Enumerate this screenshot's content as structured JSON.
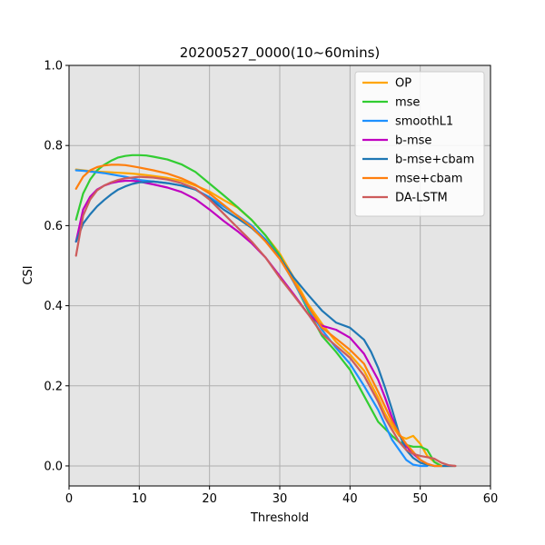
{
  "chart_data": {
    "type": "line",
    "title": "20200527_0000(10~60mins)",
    "xlabel": "Threshold",
    "ylabel": "CSI",
    "xlim": [
      0,
      60
    ],
    "ylim": [
      -0.05,
      1.0
    ],
    "xticks": [
      "0",
      "10",
      "20",
      "30",
      "40",
      "50",
      "60"
    ],
    "yticks": [
      "0.0",
      "0.2",
      "0.4",
      "0.6",
      "0.8",
      "1.0"
    ],
    "grid": true,
    "legend_position": "upper right",
    "background_color": "#e5e5e5",
    "series": [
      {
        "name": "OP",
        "color": "#ffa500",
        "x": [
          1,
          2,
          3,
          4,
          5,
          6,
          7,
          8,
          9,
          10,
          12,
          14,
          16,
          18,
          20,
          22,
          24,
          26,
          28,
          30,
          32,
          34,
          36,
          38,
          40,
          42,
          44,
          45,
          46,
          47,
          48,
          49,
          50,
          51,
          52,
          53,
          54,
          55
        ],
        "y": [
          0.74,
          0.738,
          0.736,
          0.735,
          0.734,
          0.733,
          0.732,
          0.731,
          0.73,
          0.728,
          0.724,
          0.719,
          0.712,
          0.7,
          0.685,
          0.664,
          0.645,
          0.614,
          0.575,
          0.53,
          0.47,
          0.405,
          0.355,
          0.31,
          0.278,
          0.238,
          0.17,
          0.13,
          0.1,
          0.075,
          0.068,
          0.075,
          0.055,
          0.025,
          0.01,
          0.0,
          0.0,
          0.0
        ]
      },
      {
        "name": "mse",
        "color": "#32cd32",
        "x": [
          1,
          2,
          3,
          4,
          5,
          6,
          7,
          8,
          9,
          10,
          11,
          12,
          14,
          16,
          18,
          20,
          22,
          24,
          26,
          28,
          30,
          32,
          34,
          36,
          38,
          40,
          42,
          44,
          46,
          47,
          48,
          49,
          50,
          51,
          52,
          53
        ],
        "y": [
          0.615,
          0.68,
          0.715,
          0.738,
          0.752,
          0.762,
          0.77,
          0.774,
          0.776,
          0.776,
          0.775,
          0.772,
          0.765,
          0.753,
          0.734,
          0.705,
          0.676,
          0.646,
          0.614,
          0.575,
          0.525,
          0.46,
          0.39,
          0.325,
          0.285,
          0.24,
          0.175,
          0.11,
          0.075,
          0.06,
          0.052,
          0.048,
          0.048,
          0.04,
          0.01,
          0.0
        ]
      },
      {
        "name": "smoothL1",
        "color": "#1e90ff",
        "x": [
          1,
          2,
          3,
          4,
          5,
          6,
          7,
          8,
          9,
          10,
          12,
          14,
          16,
          18,
          20,
          22,
          24,
          26,
          28,
          30,
          32,
          34,
          36,
          38,
          40,
          42,
          44,
          46,
          48,
          49,
          50,
          51
        ],
        "y": [
          0.738,
          0.737,
          0.735,
          0.733,
          0.731,
          0.728,
          0.725,
          0.722,
          0.718,
          0.714,
          0.71,
          0.706,
          0.7,
          0.69,
          0.671,
          0.648,
          0.625,
          0.6,
          0.565,
          0.52,
          0.458,
          0.395,
          0.34,
          0.295,
          0.255,
          0.2,
          0.14,
          0.065,
          0.015,
          0.003,
          0.0,
          0.0
        ]
      },
      {
        "name": "b-mse",
        "color": "#c000c0",
        "x": [
          1,
          2,
          3,
          4,
          5,
          6,
          7,
          8,
          9,
          10,
          12,
          14,
          16,
          18,
          20,
          22,
          24,
          26,
          28,
          30,
          32,
          34,
          36,
          38,
          40,
          42,
          44,
          45,
          46,
          47,
          48,
          49,
          50,
          51,
          52
        ],
        "y": [
          0.56,
          0.64,
          0.672,
          0.69,
          0.7,
          0.706,
          0.71,
          0.712,
          0.712,
          0.71,
          0.703,
          0.695,
          0.684,
          0.666,
          0.64,
          0.612,
          0.586,
          0.556,
          0.52,
          0.474,
          0.428,
          0.38,
          0.35,
          0.34,
          0.32,
          0.28,
          0.215,
          0.17,
          0.12,
          0.08,
          0.05,
          0.03,
          0.015,
          0.005,
          0.0
        ]
      },
      {
        "name": "b-mse+cbam",
        "color": "#1f77b4",
        "x": [
          1,
          2,
          3,
          4,
          5,
          6,
          7,
          8,
          9,
          10,
          12,
          14,
          16,
          18,
          20,
          22,
          24,
          26,
          28,
          30,
          32,
          34,
          36,
          38,
          40,
          42,
          43,
          44,
          45,
          46,
          47,
          48,
          49,
          50,
          51,
          52,
          53,
          54,
          55
        ],
        "y": [
          0.56,
          0.605,
          0.628,
          0.648,
          0.664,
          0.678,
          0.69,
          0.698,
          0.704,
          0.708,
          0.71,
          0.706,
          0.7,
          0.69,
          0.668,
          0.64,
          0.618,
          0.594,
          0.562,
          0.52,
          0.47,
          0.428,
          0.388,
          0.358,
          0.345,
          0.315,
          0.285,
          0.245,
          0.195,
          0.14,
          0.08,
          0.04,
          0.02,
          0.008,
          0.003,
          0.0,
          0.0,
          0.0,
          0.0
        ]
      },
      {
        "name": "mse+cbam",
        "color": "#ff7f0e",
        "x": [
          1,
          2,
          3,
          4,
          5,
          6,
          7,
          8,
          9,
          10,
          12,
          14,
          16,
          18,
          20,
          22,
          24,
          26,
          28,
          30,
          32,
          34,
          36,
          38,
          40,
          42,
          44,
          46,
          47,
          48,
          49,
          50,
          51,
          52,
          53
        ],
        "y": [
          0.692,
          0.722,
          0.738,
          0.746,
          0.75,
          0.752,
          0.752,
          0.751,
          0.748,
          0.745,
          0.738,
          0.73,
          0.718,
          0.702,
          0.68,
          0.652,
          0.624,
          0.596,
          0.56,
          0.517,
          0.46,
          0.4,
          0.345,
          0.318,
          0.29,
          0.255,
          0.185,
          0.11,
          0.08,
          0.055,
          0.035,
          0.015,
          0.005,
          0.0,
          0.0
        ]
      },
      {
        "name": "DA-LSTM",
        "color": "#cd5c5c",
        "x": [
          1,
          2,
          3,
          4,
          5,
          6,
          7,
          8,
          9,
          10,
          12,
          14,
          16,
          18,
          20,
          22,
          24,
          26,
          28,
          30,
          32,
          34,
          36,
          38,
          40,
          42,
          44,
          45,
          46,
          47,
          48,
          49,
          50,
          51,
          52,
          53,
          54,
          55
        ],
        "y": [
          0.525,
          0.625,
          0.665,
          0.688,
          0.7,
          0.708,
          0.714,
          0.718,
          0.72,
          0.722,
          0.72,
          0.715,
          0.706,
          0.692,
          0.665,
          0.63,
          0.595,
          0.56,
          0.52,
          0.47,
          0.425,
          0.38,
          0.33,
          0.3,
          0.27,
          0.225,
          0.16,
          0.12,
          0.09,
          0.06,
          0.04,
          0.03,
          0.025,
          0.022,
          0.018,
          0.008,
          0.002,
          0.0
        ]
      }
    ]
  }
}
